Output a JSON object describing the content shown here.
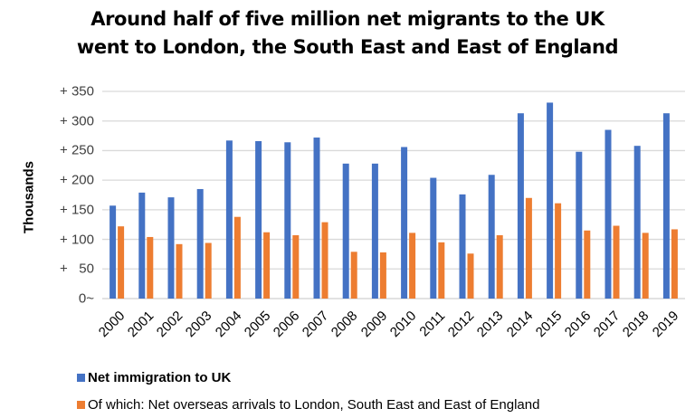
{
  "chart_data": {
    "type": "bar",
    "title": "Around half of five million net migrants to the UK went to London, the South East and East of England",
    "title_lines": [
      "Around half of five million net migrants to the UK",
      "went to London, the South East and East of England"
    ],
    "xlabel": "",
    "ylabel": "Thousands",
    "ylim": [
      0,
      350
    ],
    "yticks": [
      0,
      50,
      100,
      150,
      200,
      250,
      300,
      350
    ],
    "ytick_labels": [
      "0~",
      "+   50",
      "+ 100",
      "+ 150",
      "+ 200",
      "+ 250",
      "+ 300",
      "+ 350"
    ],
    "grid": true,
    "legend_position": "bottom",
    "categories": [
      "2000",
      "2001",
      "2002",
      "2003",
      "2004",
      "2005",
      "2006",
      "2007",
      "2008",
      "2009",
      "2010",
      "2011",
      "2012",
      "2013",
      "2014",
      "2015",
      "2016",
      "2017",
      "2018",
      "2019"
    ],
    "series": [
      {
        "name": "Net immigration to UK",
        "color": "#4472C4",
        "values": [
          157,
          179,
          171,
          185,
          267,
          266,
          264,
          272,
          228,
          228,
          256,
          204,
          176,
          209,
          313,
          331,
          248,
          285,
          258,
          313
        ]
      },
      {
        "name": "Of which: Net overseas arrivals to London, South East and East of England",
        "color": "#ED7D31",
        "values": [
          122,
          104,
          92,
          94,
          138,
          112,
          107,
          129,
          79,
          78,
          111,
          95,
          76,
          107,
          170,
          161,
          115,
          123,
          111,
          117
        ]
      }
    ]
  },
  "colors": {
    "gridline": "#D9D9D9",
    "tick_text": "#404040"
  }
}
